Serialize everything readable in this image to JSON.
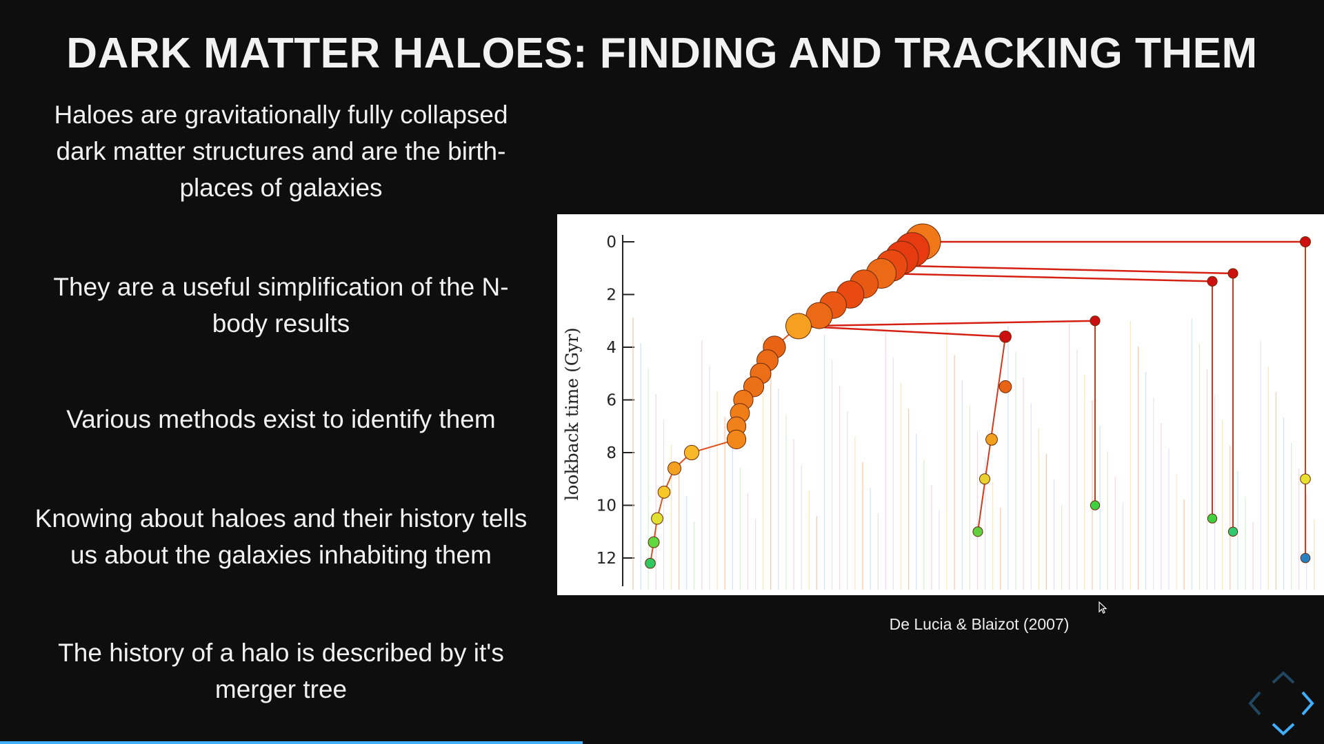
{
  "slide": {
    "title": "DARK MATTER HALOES: FINDING AND TRACKING THEM",
    "bullets": [
      "Haloes are gravitationally fully collapsed dark matter structures and are the birth-places of galaxies",
      "They are a useful simplification of the N-body results",
      "Various methods exist to identify them",
      "Knowing about haloes and their history tells us about the galaxies inhabiting them",
      "The history of a halo is described by it's merger tree"
    ],
    "caption": "De Lucia & Blaizot (2007)",
    "progress": 0.44
  },
  "controls": {
    "icons": [
      "chevron-up-icon",
      "chevron-left-icon",
      "chevron-right-icon",
      "chevron-down-icon"
    ],
    "accent_color": "#42affa"
  },
  "chart_data": {
    "type": "scatter",
    "title": "",
    "ylabel": "lookback time (Gyr)",
    "yticks": [
      "0",
      "2",
      "4",
      "6",
      "8",
      "10",
      "12"
    ],
    "ylim": [
      0,
      12.6
    ],
    "y_inverted": true,
    "series": [
      {
        "values": [
          {
            "x": 0.43,
            "y": 0.0,
            "mass": 1.0,
            "color": "#f07818"
          },
          {
            "x": 0.415,
            "y": 0.3,
            "mass": 0.95,
            "color": "#e83a10"
          },
          {
            "x": 0.4,
            "y": 0.6,
            "mass": 0.9,
            "color": "#e63a10"
          },
          {
            "x": 0.385,
            "y": 0.9,
            "mass": 0.85,
            "color": "#e84a12"
          },
          {
            "x": 0.37,
            "y": 1.2,
            "mass": 0.8,
            "color": "#ec6a16"
          },
          {
            "x": 0.345,
            "y": 1.6,
            "mass": 0.75,
            "color": "#e85a14"
          },
          {
            "x": 0.325,
            "y": 2.0,
            "mass": 0.72,
            "color": "#e84a12"
          },
          {
            "x": 0.3,
            "y": 2.4,
            "mass": 0.7,
            "color": "#ea5814"
          },
          {
            "x": 0.28,
            "y": 2.8,
            "mass": 0.68,
            "color": "#ec6a16"
          },
          {
            "x": 0.25,
            "y": 3.2,
            "mass": 0.66,
            "color": "#f5a020"
          },
          {
            "x": 0.215,
            "y": 4.0,
            "mass": 0.55,
            "color": "#e86414"
          },
          {
            "x": 0.205,
            "y": 4.5,
            "mass": 0.52,
            "color": "#ea6a16"
          },
          {
            "x": 0.195,
            "y": 5.0,
            "mass": 0.5,
            "color": "#ec6e16"
          },
          {
            "x": 0.185,
            "y": 5.5,
            "mass": 0.48,
            "color": "#ec7018"
          },
          {
            "x": 0.17,
            "y": 6.0,
            "mass": 0.46,
            "color": "#ee7818"
          },
          {
            "x": 0.165,
            "y": 6.5,
            "mass": 0.45,
            "color": "#f07e18"
          },
          {
            "x": 0.16,
            "y": 7.0,
            "mass": 0.44,
            "color": "#f0801a"
          },
          {
            "x": 0.16,
            "y": 7.5,
            "mass": 0.44,
            "color": "#f2881a"
          },
          {
            "x": 0.095,
            "y": 8.0,
            "mass": 0.3,
            "color": "#f8b82a"
          },
          {
            "x": 0.07,
            "y": 8.6,
            "mass": 0.25,
            "color": "#f4a020"
          },
          {
            "x": 0.055,
            "y": 9.5,
            "mass": 0.22,
            "color": "#f8c828"
          },
          {
            "x": 0.045,
            "y": 10.5,
            "mass": 0.2,
            "color": "#e0e030"
          },
          {
            "x": 0.04,
            "y": 11.4,
            "mass": 0.18,
            "color": "#60d840"
          },
          {
            "x": 0.035,
            "y": 12.2,
            "mass": 0.15,
            "color": "#30c860"
          },
          {
            "x": 0.55,
            "y": 3.6,
            "mass": 0.2,
            "color": "#cc1010"
          },
          {
            "x": 0.55,
            "y": 5.5,
            "mass": 0.22,
            "color": "#e86414"
          },
          {
            "x": 0.53,
            "y": 7.5,
            "mass": 0.2,
            "color": "#f2a020"
          },
          {
            "x": 0.52,
            "y": 9.0,
            "mass": 0.16,
            "color": "#e8d030"
          },
          {
            "x": 0.51,
            "y": 11.0,
            "mass": 0.14,
            "color": "#60d040"
          },
          {
            "x": 0.68,
            "y": 3.0,
            "mass": 0.14,
            "color": "#cc1010"
          },
          {
            "x": 0.68,
            "y": 10.0,
            "mass": 0.12,
            "color": "#40d040"
          },
          {
            "x": 0.85,
            "y": 1.5,
            "mass": 0.14,
            "color": "#cc1010"
          },
          {
            "x": 0.85,
            "y": 10.5,
            "mass": 0.12,
            "color": "#40d040"
          },
          {
            "x": 0.88,
            "y": 1.2,
            "mass": 0.14,
            "color": "#cc1010"
          },
          {
            "x": 0.88,
            "y": 11.0,
            "mass": 0.12,
            "color": "#30c870"
          },
          {
            "x": 0.985,
            "y": 0.0,
            "mass": 0.16,
            "color": "#cc1010"
          },
          {
            "x": 0.985,
            "y": 9.0,
            "mass": 0.15,
            "color": "#e8e030"
          },
          {
            "x": 0.985,
            "y": 12.0,
            "mass": 0.13,
            "color": "#2880c0"
          }
        ]
      }
    ],
    "grid": false
  }
}
